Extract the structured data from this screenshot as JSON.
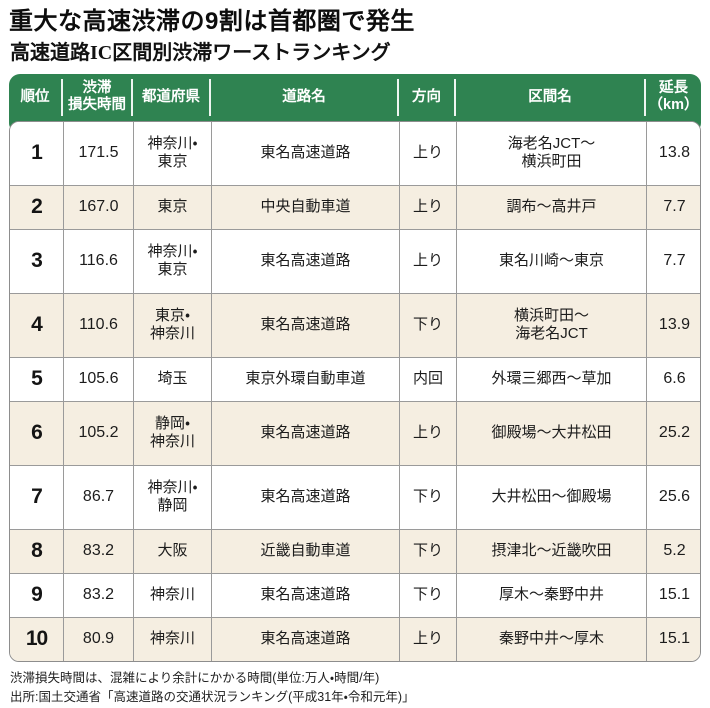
{
  "header": {
    "title": "重大な高速渋滞の9割は首都圏で発生",
    "subtitle": "高速道路IC区間別渋滞ワーストランキング"
  },
  "colors": {
    "header_green": "#2f8351",
    "row_alt_beige": "#f5eee1",
    "border_gray": "#9a9a9a"
  },
  "chart_data": {
    "type": "table",
    "title": "高速道路IC区間別渋滞ワーストランキング",
    "columns": [
      {
        "label": "順位"
      },
      {
        "label": "渋滞\n損失時間"
      },
      {
        "label": "都道府県"
      },
      {
        "label": "道路名"
      },
      {
        "label": "方向"
      },
      {
        "label": "区間名"
      },
      {
        "label": "延長\n（km）"
      }
    ],
    "rows": [
      {
        "rank": "1",
        "loss_time": "171.5",
        "prefecture": "神奈川・\n東京",
        "road": "東名高速道路",
        "direction": "上り",
        "section": "海老名JCT～\n横浜町田",
        "length_km": "13.8"
      },
      {
        "rank": "2",
        "loss_time": "167.0",
        "prefecture": "東京",
        "road": "中央自動車道",
        "direction": "上り",
        "section": "調布～高井戸",
        "length_km": "7.7"
      },
      {
        "rank": "3",
        "loss_time": "116.6",
        "prefecture": "神奈川・\n東京",
        "road": "東名高速道路",
        "direction": "上り",
        "section": "東名川崎～東京",
        "length_km": "7.7"
      },
      {
        "rank": "4",
        "loss_time": "110.6",
        "prefecture": "東京・\n神奈川",
        "road": "東名高速道路",
        "direction": "下り",
        "section": "横浜町田～\n海老名JCT",
        "length_km": "13.9"
      },
      {
        "rank": "5",
        "loss_time": "105.6",
        "prefecture": "埼玉",
        "road": "東京外環自動車道",
        "direction": "内回",
        "section": "外環三郷西～草加",
        "length_km": "6.6"
      },
      {
        "rank": "6",
        "loss_time": "105.2",
        "prefecture": "静岡・\n神奈川",
        "road": "東名高速道路",
        "direction": "上り",
        "section": "御殿場～大井松田",
        "length_km": "25.2"
      },
      {
        "rank": "7",
        "loss_time": "86.7",
        "prefecture": "神奈川・\n静岡",
        "road": "東名高速道路",
        "direction": "下り",
        "section": "大井松田～御殿場",
        "length_km": "25.6"
      },
      {
        "rank": "8",
        "loss_time": "83.2",
        "prefecture": "大阪",
        "road": "近畿自動車道",
        "direction": "下り",
        "section": "摂津北～近畿吹田",
        "length_km": "5.2"
      },
      {
        "rank": "9",
        "loss_time": "83.2",
        "prefecture": "神奈川",
        "road": "東名高速道路",
        "direction": "下り",
        "section": "厚木～秦野中井",
        "length_km": "15.1"
      },
      {
        "rank": "10",
        "loss_time": "80.9",
        "prefecture": "神奈川",
        "road": "東名高速道路",
        "direction": "上り",
        "section": "秦野中井～厚木",
        "length_km": "15.1"
      }
    ]
  },
  "notes": {
    "line1": "渋滞損失時間は、混雑により余計にかかる時間(単位:万人・時間/年)",
    "line2": "出所:国土交通省「高速道路の交通状況ランキング(平成31年・令和元年)」"
  }
}
